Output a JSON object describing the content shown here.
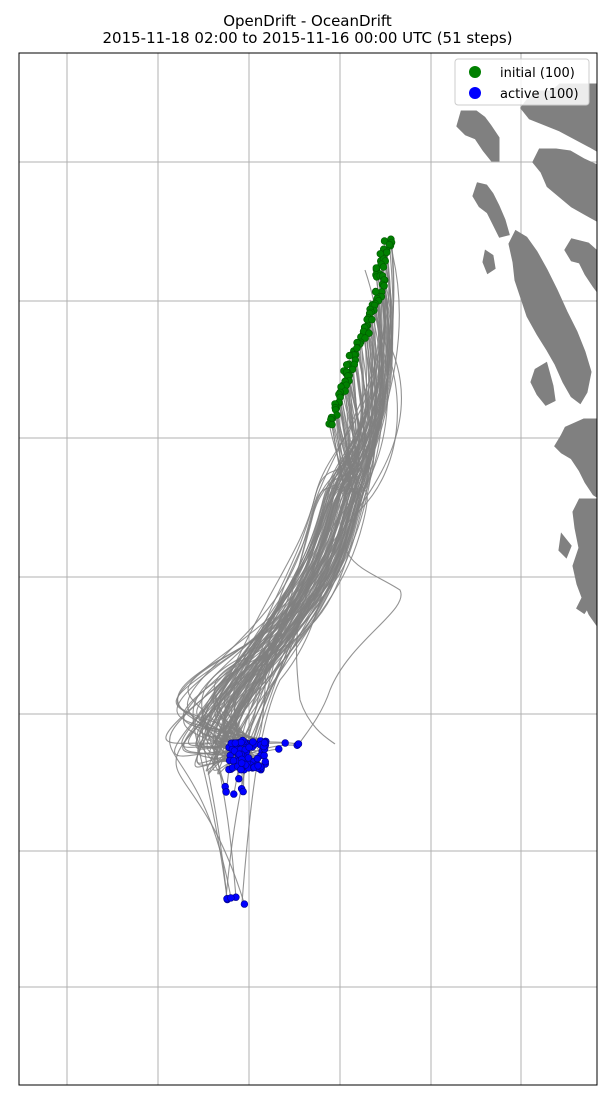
{
  "title_line_1": "OpenDrift - OceanDrift",
  "title_line_2": "2015-11-18 02:00 to 2015-11-16 00:00 UTC (51 steps)",
  "legend": [
    {
      "label": "initial (100)",
      "color": "#008000",
      "symbol": "filled-circle"
    },
    {
      "label": "active (100)",
      "color": "#0000ff",
      "symbol": "filled-circle"
    }
  ],
  "colors": {
    "land": "#808080",
    "trajectory": "#808080",
    "gridline": "#b0b0b0",
    "initial": "#008000",
    "active": "#0000ff"
  },
  "map": {
    "gridlines_visible": true,
    "tick_labels_visible": false,
    "vertical_gridlines": 6,
    "horizontal_gridlines": 7
  }
}
